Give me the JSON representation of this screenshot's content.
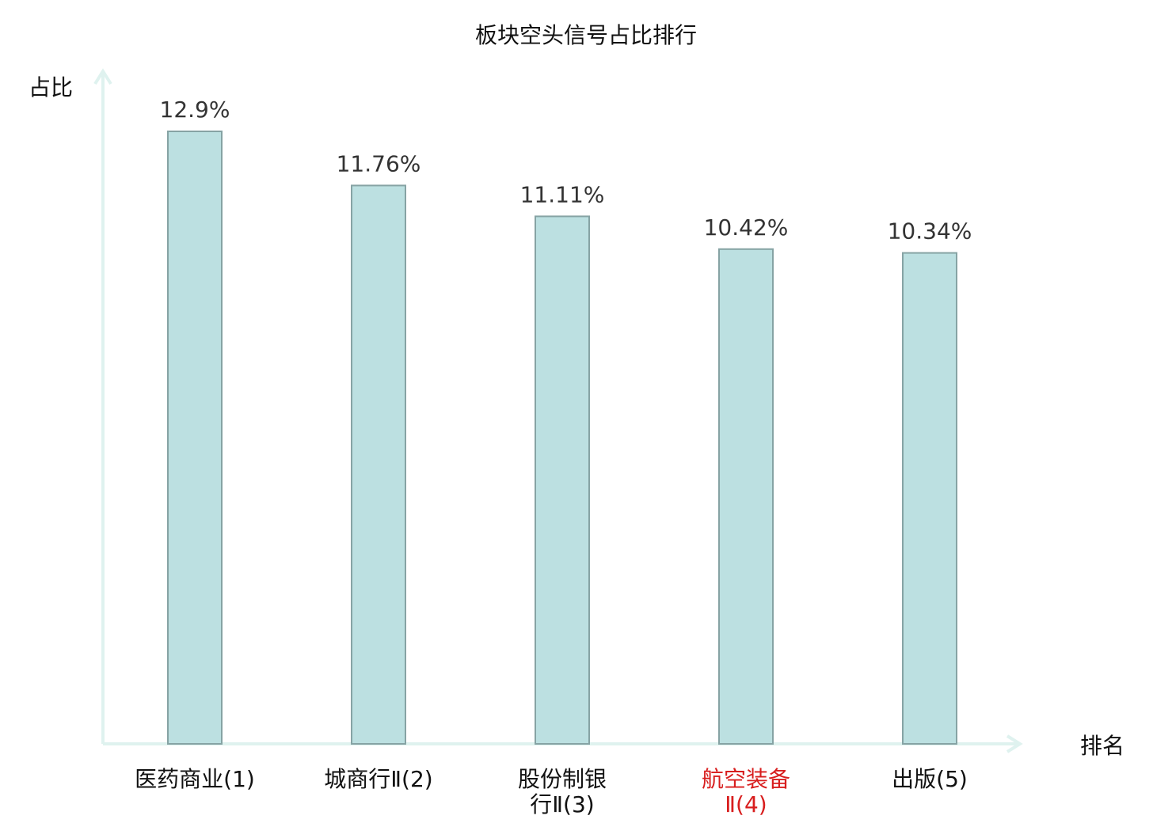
{
  "chart_data": {
    "type": "bar",
    "title": "板块空头信号占比排行",
    "ylabel": "占比",
    "xlabel": "排名",
    "categories": [
      [
        "医药商业(1)"
      ],
      [
        "城商行Ⅱ(2)"
      ],
      [
        "股份制银",
        "行Ⅱ(3)"
      ],
      [
        "航空装备",
        "Ⅱ(4)"
      ],
      [
        "出版(5)"
      ]
    ],
    "values": [
      12.9,
      11.76,
      11.11,
      10.42,
      10.34
    ],
    "value_labels": [
      "12.9%",
      "11.76%",
      "11.11%",
      "10.42%",
      "10.34%"
    ],
    "highlight_index": 3,
    "ylim": [
      0,
      14
    ],
    "grid": false,
    "colors": {
      "bar_fill": "#bce0e1",
      "bar_stroke": "#86a3a4",
      "axis": "#dff2ef",
      "highlight_text": "#d81e1e",
      "text": "#111111"
    }
  }
}
